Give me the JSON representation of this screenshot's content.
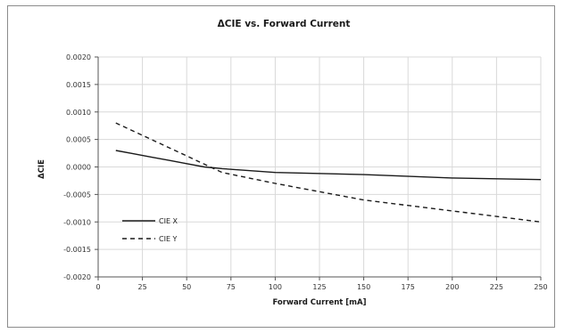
{
  "chart_data": {
    "type": "line",
    "title": "ΔCIE vs. Forward Current",
    "xlabel": "Forward Current [mA]",
    "ylabel": "ΔCIE",
    "xlim": [
      0,
      250
    ],
    "ylim": [
      -0.002,
      0.002
    ],
    "x_ticks": [
      "0",
      "25",
      "50",
      "75",
      "100",
      "125",
      "150",
      "175",
      "200",
      "225",
      "250"
    ],
    "y_ticks": [
      "0.0020",
      "0.0015",
      "0.0010",
      "0.0005",
      "0.0000",
      "-0.0005",
      "-0.0010",
      "-0.0015",
      "-0.0020"
    ],
    "grid": true,
    "legend_position": "bottom-left",
    "series": [
      {
        "name": "CIE X",
        "style": "solid",
        "color": "#1a1a1a",
        "x": [
          10,
          20,
          30,
          40,
          50,
          60,
          70,
          100,
          150,
          200,
          250
        ],
        "y": [
          0.0003,
          0.00024,
          0.00018,
          0.00012,
          6e-05,
          0.0,
          -3e-05,
          -0.0001,
          -0.00014,
          -0.0002,
          -0.00023
        ]
      },
      {
        "name": "CIE Y",
        "style": "dashed",
        "color": "#1a1a1a",
        "x": [
          10,
          20,
          30,
          40,
          50,
          60,
          70,
          100,
          150,
          200,
          250
        ],
        "y": [
          0.0008,
          0.00065,
          0.0005,
          0.00035,
          0.0002,
          5e-05,
          -0.0001,
          -0.0003,
          -0.0006,
          -0.0008,
          -0.001
        ]
      }
    ]
  }
}
